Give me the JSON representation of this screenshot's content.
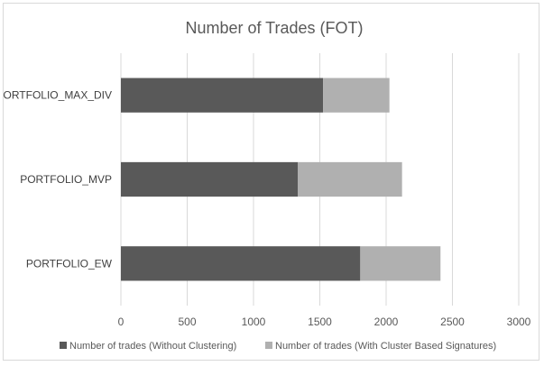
{
  "chart_data": {
    "type": "bar",
    "orientation": "horizontal",
    "stacked": true,
    "title": "Number of Trades (FOT)",
    "categories": [
      "PORTFOLIO_MAX_DIV",
      "PORTFOLIO_MVP",
      "PORTFOLIO_EW"
    ],
    "series": [
      {
        "name": "Number of trades (Without Clustering)",
        "values": [
          1525,
          1335,
          1805
        ],
        "color": "#595959"
      },
      {
        "name": "Number of trades (With Cluster Based Signatures)",
        "values": [
          500,
          785,
          605
        ],
        "color": "#b0b0b0"
      }
    ],
    "xlim": [
      0,
      3000
    ],
    "xticks": [
      0,
      500,
      1000,
      1500,
      2000,
      2500,
      3000
    ],
    "grid": "vertical",
    "legend_position": "bottom"
  }
}
